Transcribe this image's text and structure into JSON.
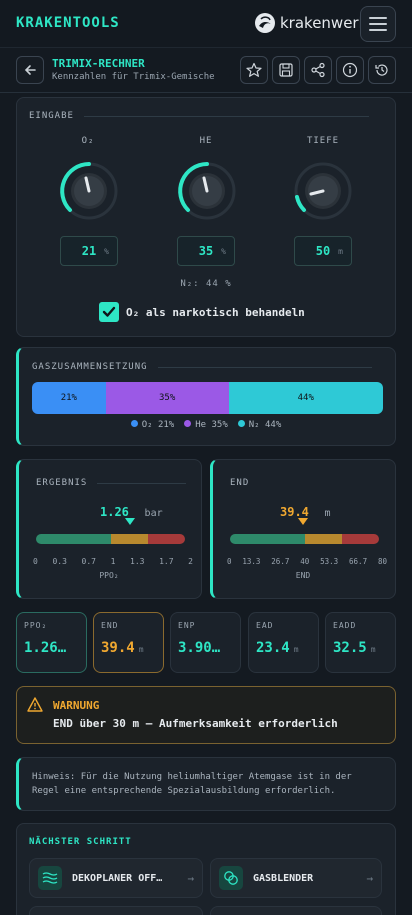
{
  "app": {
    "brand": "KRAKENTOOLS",
    "logo_text": "krakenwerk"
  },
  "page": {
    "title": "TRIMIX-RECHNER",
    "subtitle": "Kennzahlen für Trimix-Gemische"
  },
  "toolbar": {
    "icons": [
      "star-icon",
      "save-icon",
      "share-icon",
      "info-icon",
      "history-icon"
    ]
  },
  "input": {
    "label": "EINGABE",
    "o2": {
      "label": "O₂",
      "value": "21",
      "unit": "%"
    },
    "he": {
      "label": "HE",
      "value": "35",
      "unit": "%"
    },
    "depth": {
      "label": "TIEFE",
      "value": "50",
      "unit": "m"
    },
    "n2_text": "N₂: 44 %",
    "o2_narcotic_label": "O₂ als narkotisch behandeln",
    "o2_narcotic_checked": true
  },
  "composition": {
    "label": "GASZUSAMMENSETZUNG",
    "segments": [
      {
        "name": "O₂",
        "percent": 21,
        "label": "21%",
        "legend": "O₂ 21%",
        "color": "#3a8ff5"
      },
      {
        "name": "He",
        "percent": 35,
        "label": "35%",
        "legend": "He 35%",
        "color": "#9b59e6"
      },
      {
        "name": "N₂",
        "percent": 44,
        "label": "44%",
        "legend": "N₂ 44%",
        "color": "#2ec9d6"
      }
    ]
  },
  "result": {
    "label": "ERGEBNIS",
    "value": "1.26",
    "numeric": 1.26,
    "unit": "bar",
    "range": [
      0,
      2
    ],
    "ticks": [
      "0",
      "0.3",
      "0.7",
      "1",
      "1.3",
      "1.7",
      "2"
    ],
    "axis": "PPO₂"
  },
  "end_gauge": {
    "label": "END",
    "value": "39.4",
    "numeric": 39.4,
    "unit": "m",
    "range": [
      0,
      80
    ],
    "ticks": [
      "0",
      "13.3",
      "26.7",
      "40",
      "53.3",
      "66.7",
      "80"
    ],
    "axis": "END"
  },
  "stats": [
    {
      "key": "PPO₂",
      "value": "1.26…",
      "unit": "",
      "color": "#2ee6c5",
      "highlight": "#2ee6c5"
    },
    {
      "key": "END",
      "value": "39.4",
      "unit": "m",
      "color": "#f0a830",
      "highlight": "#f0a830"
    },
    {
      "key": "ENP",
      "value": "3.90…",
      "unit": "",
      "color": "#2ee6c5",
      "highlight": ""
    },
    {
      "key": "EAD",
      "value": "23.4",
      "unit": "m",
      "color": "#2ee6c5",
      "highlight": ""
    },
    {
      "key": "EADD",
      "value": "32.5",
      "unit": "m",
      "color": "#2ee6c5",
      "highlight": ""
    }
  ],
  "warning": {
    "title": "WARNUNG",
    "text": "END über 30 m – Aufmerksamkeit erforderlich"
  },
  "hint": {
    "text_line1": "Hinweis: Für die Nutzung heliumhaltiger Atemgase ist in der",
    "text_line2": "Regel eine entsprechende Spezialausbildung erforderlich."
  },
  "next": {
    "label": "NÄCHSTER SCHRITT",
    "buttons": [
      {
        "label": "DEKOPLANER ÖFF…",
        "icon": "waves-icon"
      },
      {
        "label": "GASBLENDER",
        "icon": "blend-icon"
      }
    ]
  },
  "colors": {
    "accent": "#2ee6c5",
    "warning": "#f0a830",
    "gauge_green": "#2e8a6a",
    "gauge_amber": "#b8892e",
    "gauge_red": "#a63a3a"
  }
}
